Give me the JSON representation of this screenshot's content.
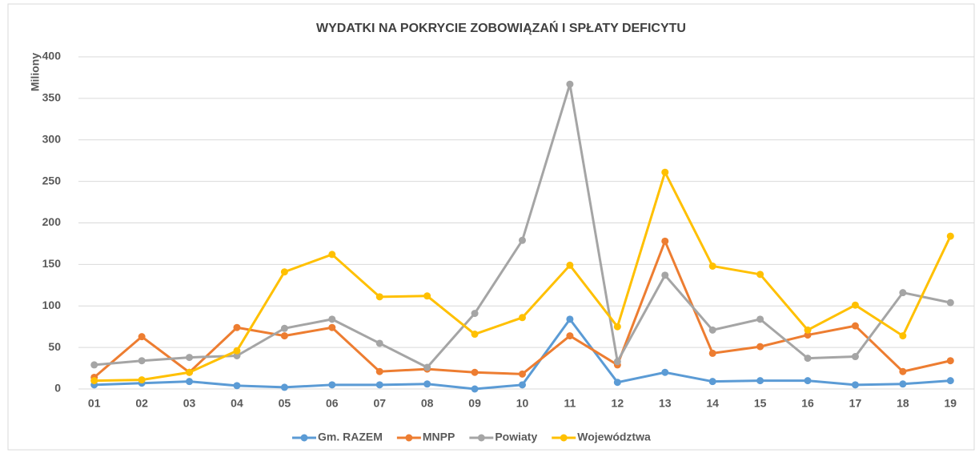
{
  "chart_data": {
    "type": "line",
    "title": "WYDATKI NA POKRYCIE ZOBOWIĄZAŃ I SPŁATY DEFICYTU",
    "y_label": "Miliony",
    "categories": [
      "01",
      "02",
      "03",
      "04",
      "05",
      "06",
      "07",
      "08",
      "09",
      "10",
      "11",
      "12",
      "13",
      "14",
      "15",
      "16",
      "17",
      "18",
      "19"
    ],
    "series": [
      {
        "name": "Gm. RAZEM",
        "color": "#5b9bd5",
        "values": [
          5,
          7,
          9,
          4,
          2,
          5,
          5,
          6,
          0,
          5,
          84,
          8,
          20,
          9,
          10,
          10,
          5,
          6,
          10
        ]
      },
      {
        "name": "MNPP",
        "color": "#ed7d31",
        "values": [
          14,
          63,
          20,
          74,
          64,
          74,
          21,
          24,
          20,
          18,
          64,
          29,
          178,
          43,
          51,
          65,
          76,
          21,
          34
        ]
      },
      {
        "name": "Powiaty",
        "color": "#a5a5a5",
        "values": [
          29,
          34,
          38,
          40,
          73,
          84,
          55,
          26,
          91,
          179,
          367,
          33,
          137,
          71,
          84,
          37,
          39,
          116,
          104
        ]
      },
      {
        "name": "Województwa",
        "color": "#ffc000",
        "values": [
          10,
          11,
          20,
          46,
          141,
          162,
          111,
          112,
          66,
          86,
          149,
          75,
          261,
          148,
          138,
          71,
          101,
          64,
          184
        ]
      }
    ],
    "ylim": [
      0,
      400
    ],
    "yticks": [
      0,
      50,
      100,
      150,
      200,
      250,
      300,
      350,
      400
    ],
    "grid": true,
    "legend": "bottom"
  }
}
